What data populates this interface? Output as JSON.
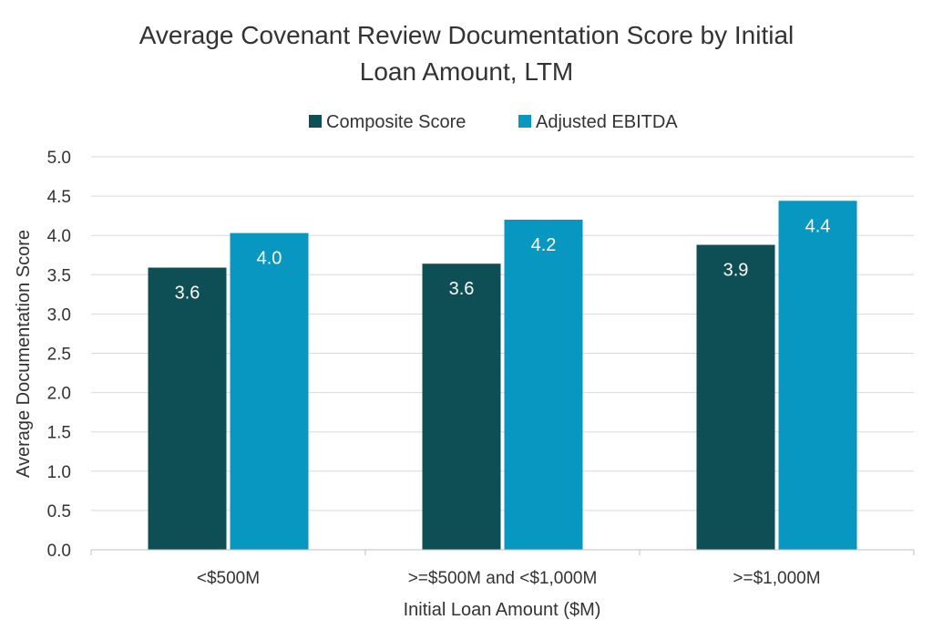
{
  "chart_data": {
    "type": "bar",
    "title_lines": [
      "Average Covenant Review Documentation Score by Initial",
      "Loan Amount, LTM"
    ],
    "xlabel": "Initial Loan Amount ($M)",
    "ylabel": "Average Documentation Score",
    "categories": [
      "<$500M",
      ">=$500M and <$1,000M",
      ">=$1,000M"
    ],
    "series": [
      {
        "name": "Composite Score",
        "color": "#0e4f55",
        "values": [
          3.59,
          3.64,
          3.88
        ],
        "labels": [
          "3.6",
          "3.6",
          "3.9"
        ]
      },
      {
        "name": "Adjusted EBITDA",
        "color": "#0897c1",
        "values": [
          4.03,
          4.2,
          4.44
        ],
        "labels": [
          "4.0",
          "4.2",
          "4.4"
        ]
      }
    ],
    "ylim": [
      0,
      5
    ],
    "yticks": [
      "0.0",
      "0.5",
      "1.0",
      "1.5",
      "2.0",
      "2.5",
      "3.0",
      "3.5",
      "4.0",
      "4.5",
      "5.0"
    ],
    "grid": true,
    "legend_position": "top-center",
    "gridline_color": "#d9d9d9"
  }
}
